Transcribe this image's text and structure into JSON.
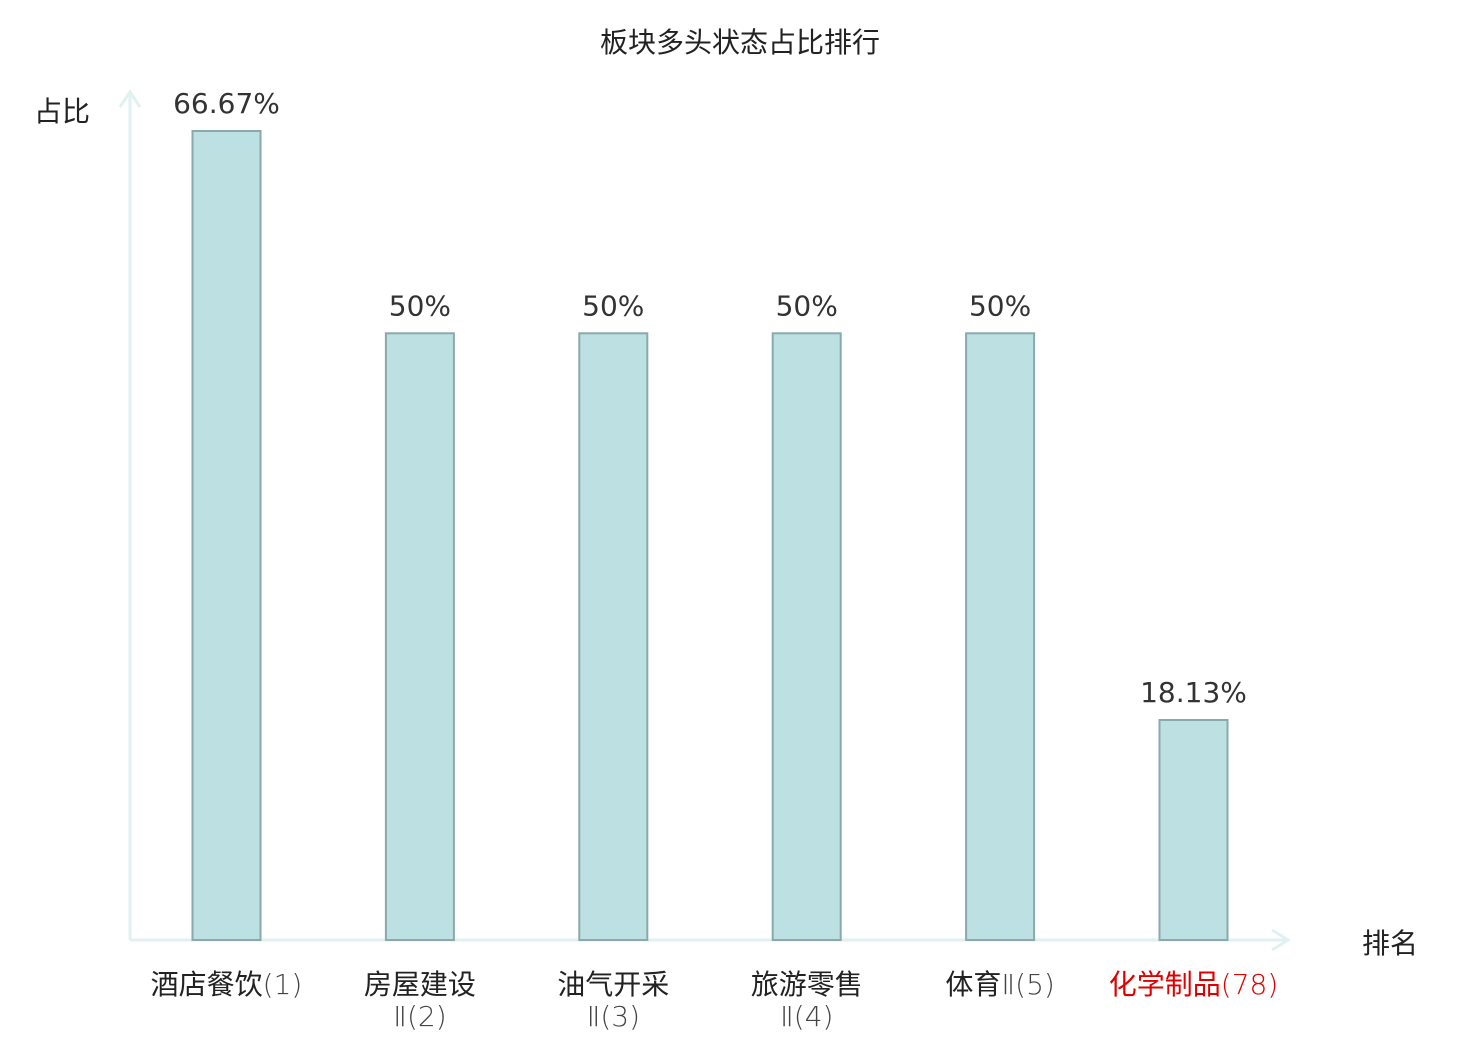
{
  "chart_data": {
    "type": "bar",
    "title": "板块多头状态占比排行",
    "ylabel": "占比",
    "xlabel": "排名",
    "ylim": [
      0,
      70
    ],
    "grid": false,
    "legend": "none",
    "categories": [
      {
        "name": "酒店餐饮",
        "suffix": "(1)",
        "lines": [
          "酒店餐饮(1)"
        ],
        "highlight": false
      },
      {
        "name": "房屋建设Ⅱ",
        "suffix": "(2)",
        "lines": [
          "房屋建设",
          "Ⅱ(2)"
        ],
        "highlight": false
      },
      {
        "name": "油气开采Ⅱ",
        "suffix": "(3)",
        "lines": [
          "油气开采",
          "Ⅱ(3)"
        ],
        "highlight": false
      },
      {
        "name": "旅游零售Ⅱ",
        "suffix": "(4)",
        "lines": [
          "旅游零售",
          "Ⅱ(4)"
        ],
        "highlight": false
      },
      {
        "name": "体育Ⅱ",
        "suffix": "(5)",
        "lines": [
          "体育Ⅱ(5)"
        ],
        "highlight": false
      },
      {
        "name": "化学制品",
        "suffix": "(78)",
        "lines": [
          "化学制品(78)"
        ],
        "highlight": true
      }
    ],
    "values": [
      66.67,
      50,
      50,
      50,
      50,
      18.13
    ],
    "value_labels": [
      "66.67%",
      "50%",
      "50%",
      "50%",
      "50%",
      "18.13%"
    ],
    "colors": {
      "bar_fill": "#bde1e3",
      "bar_stroke": "#8aa9ab",
      "axis": "#e0f2ef",
      "text": "#222222",
      "value_text": "#333333",
      "suffix_text": "#444444",
      "highlight": "#e00000"
    }
  }
}
